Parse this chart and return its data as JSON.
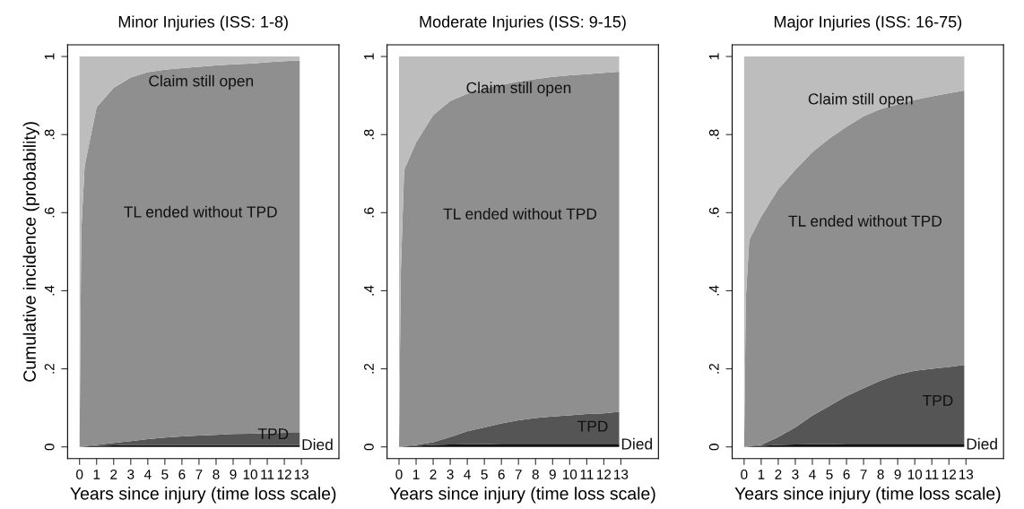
{
  "chart_data": [
    {
      "type": "area",
      "stacked": true,
      "title": "Minor Injuries (ISS: 1-8)",
      "xlabel": "Years since injury (time loss scale)",
      "ylabel": "Cumulative incidence (probability)",
      "x": [
        0,
        0.1,
        0.3,
        1,
        2,
        3,
        4,
        5,
        6,
        7,
        8,
        9,
        10,
        11,
        12,
        12.9
      ],
      "series": [
        {
          "name": "Died",
          "color": "#111111",
          "values": [
            0,
            0,
            0.001,
            0.003,
            0.004,
            0.005,
            0.005,
            0.005,
            0.005,
            0.005,
            0.005,
            0.005,
            0.005,
            0.005,
            0.005,
            0.005
          ]
        },
        {
          "name": "TPD",
          "color": "#555555",
          "values": [
            0,
            0,
            0.001,
            0.002,
            0.006,
            0.01,
            0.015,
            0.019,
            0.022,
            0.024,
            0.026,
            0.028,
            0.029,
            0.03,
            0.031,
            0.031
          ]
        },
        {
          "name": "TL ended without TPD",
          "color": "#8f8f8f",
          "values": [
            0,
            0.55,
            0.718,
            0.865,
            0.91,
            0.931,
            0.94,
            0.942,
            0.943,
            0.945,
            0.946,
            0.947,
            0.948,
            0.95,
            0.952,
            0.954
          ]
        },
        {
          "name": "Claim still open",
          "color": "#bdbdbd",
          "values": [
            1,
            0.45,
            0.28,
            0.13,
            0.08,
            0.054,
            0.04,
            0.034,
            0.03,
            0.026,
            0.023,
            0.02,
            0.018,
            0.015,
            0.012,
            0.01
          ]
        }
      ],
      "xlim": [
        -0.7,
        15.2
      ],
      "xticks": [
        0,
        1,
        2,
        3,
        4,
        5,
        6,
        7,
        8,
        9,
        10,
        11,
        12,
        13
      ],
      "ylim": [
        -0.03,
        1.03
      ],
      "yticks": [
        0,
        {
          "value": 0.2,
          "label": ".2"
        },
        {
          "value": 0.4,
          "label": ".4"
        },
        {
          "value": 0.6,
          "label": ".6"
        },
        {
          "value": 0.8,
          "label": ".8"
        },
        1
      ]
    },
    {
      "type": "area",
      "stacked": true,
      "title": "Moderate Injuries (ISS: 9-15)",
      "xlabel": "Years since injury (time loss scale)",
      "x": [
        0,
        0.1,
        0.3,
        1,
        2,
        3,
        4,
        5,
        6,
        7,
        8,
        9,
        10,
        11,
        12,
        12.9
      ],
      "series": [
        {
          "name": "Died",
          "color": "#111111",
          "values": [
            0,
            0,
            0.001,
            0.003,
            0.005,
            0.006,
            0.007,
            0.007,
            0.008,
            0.008,
            0.008,
            0.008,
            0.008,
            0.008,
            0.008,
            0.008
          ]
        },
        {
          "name": "TPD",
          "color": "#555555",
          "values": [
            0,
            0,
            0.001,
            0.002,
            0.007,
            0.019,
            0.033,
            0.043,
            0.052,
            0.06,
            0.066,
            0.07,
            0.073,
            0.076,
            0.078,
            0.082
          ]
        },
        {
          "name": "TL ended without TPD",
          "color": "#8f8f8f",
          "values": [
            0,
            0.44,
            0.708,
            0.775,
            0.838,
            0.861,
            0.865,
            0.867,
            0.867,
            0.868,
            0.868,
            0.87,
            0.871,
            0.871,
            0.872,
            0.871
          ]
        },
        {
          "name": "Claim still open",
          "color": "#bdbdbd",
          "values": [
            1,
            0.56,
            0.29,
            0.22,
            0.15,
            0.114,
            0.095,
            0.083,
            0.073,
            0.064,
            0.058,
            0.052,
            0.048,
            0.045,
            0.042,
            0.039
          ]
        }
      ],
      "xlim": [
        -0.7,
        15.2
      ],
      "xticks": [
        0,
        1,
        2,
        3,
        4,
        5,
        6,
        7,
        8,
        9,
        10,
        11,
        12,
        13
      ],
      "ylim": [
        -0.03,
        1.03
      ],
      "yticks": [
        0,
        {
          "value": 0.2,
          "label": ".2"
        },
        {
          "value": 0.4,
          "label": ".4"
        },
        {
          "value": 0.6,
          "label": ".6"
        },
        {
          "value": 0.8,
          "label": ".8"
        },
        1
      ]
    },
    {
      "type": "area",
      "stacked": true,
      "title": "Major Injuries (ISS: 16-75)",
      "xlabel": "Years since injury (time loss scale)",
      "x": [
        0,
        0.1,
        0.3,
        1,
        2,
        3,
        4,
        5,
        6,
        7,
        8,
        9,
        10,
        11,
        12,
        12.9
      ],
      "series": [
        {
          "name": "Died",
          "color": "#111111",
          "values": [
            0,
            0,
            0.001,
            0.003,
            0.005,
            0.006,
            0.007,
            0.007,
            0.008,
            0.008,
            0.008,
            0.008,
            0.008,
            0.008,
            0.008,
            0.008
          ]
        },
        {
          "name": "TPD",
          "color": "#555555",
          "values": [
            0,
            0,
            0.001,
            0.002,
            0.02,
            0.044,
            0.073,
            0.098,
            0.122,
            0.142,
            0.162,
            0.177,
            0.187,
            0.192,
            0.197,
            0.202
          ]
        },
        {
          "name": "TL ended without TPD",
          "color": "#8f8f8f",
          "values": [
            0,
            0.38,
            0.528,
            0.585,
            0.635,
            0.66,
            0.675,
            0.685,
            0.69,
            0.697,
            0.695,
            0.693,
            0.694,
            0.698,
            0.701,
            0.703
          ]
        },
        {
          "name": "Claim still open",
          "color": "#bdbdbd",
          "values": [
            1,
            0.62,
            0.47,
            0.41,
            0.34,
            0.29,
            0.245,
            0.21,
            0.18,
            0.153,
            0.135,
            0.122,
            0.111,
            0.102,
            0.094,
            0.087
          ]
        }
      ],
      "xlim": [
        -0.7,
        15.2
      ],
      "xticks": [
        0,
        1,
        2,
        3,
        4,
        5,
        6,
        7,
        8,
        9,
        10,
        11,
        12,
        13
      ],
      "ylim": [
        -0.03,
        1.03
      ],
      "yticks": [
        0,
        {
          "value": 0.2,
          "label": ".2"
        },
        {
          "value": 0.4,
          "label": ".4"
        },
        {
          "value": 0.6,
          "label": ".6"
        },
        {
          "value": 0.8,
          "label": ".8"
        },
        1
      ]
    }
  ]
}
